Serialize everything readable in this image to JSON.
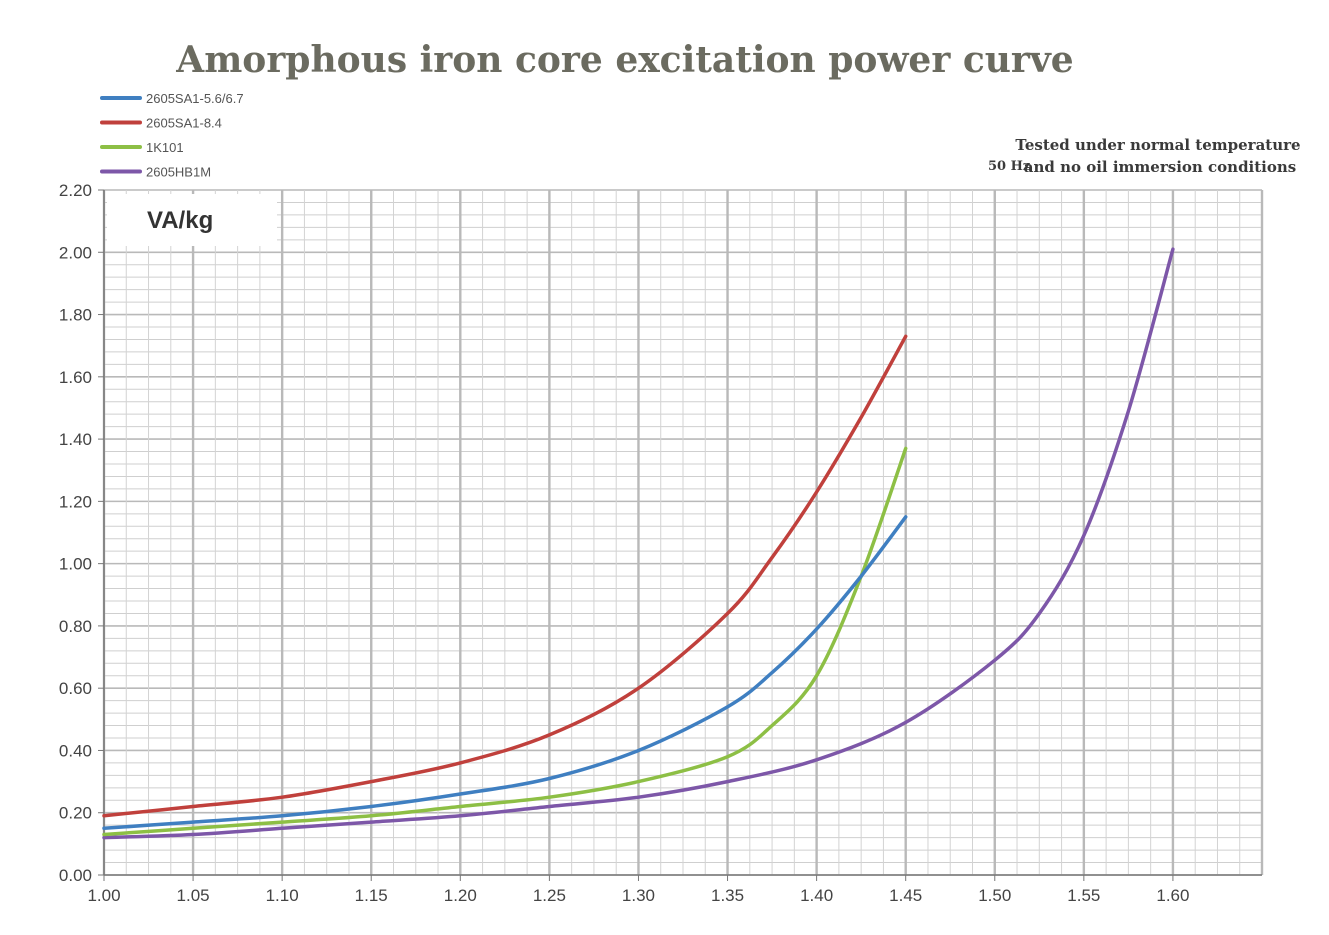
{
  "chart_data": {
    "type": "line",
    "title": "Amorphous iron core excitation power curve",
    "ylabel": "VA/kg",
    "xlabel": "",
    "frequency_label": "50 Hz",
    "note_lines": [
      "Tested under normal temperature",
      "and no oil immersion conditions"
    ],
    "xlim": [
      1.0,
      1.65
    ],
    "ylim": [
      0,
      2.2
    ],
    "x_ticks": [
      "1.00",
      "1.05",
      "1.10",
      "1.15",
      "1.20",
      "1.25",
      "1.30",
      "1.35",
      "1.40",
      "1.45",
      "1.50",
      "1.55",
      "1.60"
    ],
    "y_ticks": [
      "0.00",
      "0.20",
      "0.40",
      "0.60",
      "0.80",
      "1.00",
      "1.20",
      "1.40",
      "1.60",
      "1.80",
      "2.00",
      "2.20"
    ],
    "grid": true,
    "legend_position": "top-left",
    "series": [
      {
        "name": "2605SA1-5.6/6.7",
        "color": "#3f7fc1",
        "x": [
          1.0,
          1.05,
          1.1,
          1.15,
          1.2,
          1.25,
          1.3,
          1.35,
          1.375,
          1.4,
          1.425,
          1.45
        ],
        "y": [
          0.15,
          0.17,
          0.19,
          0.22,
          0.26,
          0.31,
          0.4,
          0.54,
          0.65,
          0.79,
          0.96,
          1.15
        ]
      },
      {
        "name": "2605SA1-8.4",
        "color": "#c0403c",
        "x": [
          1.0,
          1.05,
          1.1,
          1.15,
          1.2,
          1.25,
          1.3,
          1.35,
          1.375,
          1.4,
          1.425,
          1.45
        ],
        "y": [
          0.19,
          0.22,
          0.25,
          0.3,
          0.36,
          0.45,
          0.6,
          0.84,
          1.02,
          1.23,
          1.47,
          1.73
        ]
      },
      {
        "name": "1K101",
        "color": "#8dbf45",
        "x": [
          1.0,
          1.05,
          1.1,
          1.15,
          1.2,
          1.25,
          1.3,
          1.35,
          1.375,
          1.4,
          1.425,
          1.45
        ],
        "y": [
          0.13,
          0.15,
          0.17,
          0.19,
          0.22,
          0.25,
          0.3,
          0.38,
          0.48,
          0.64,
          0.96,
          1.37
        ]
      },
      {
        "name": "2605HB1M",
        "color": "#7d57a8",
        "x": [
          1.0,
          1.05,
          1.1,
          1.15,
          1.2,
          1.25,
          1.3,
          1.35,
          1.4,
          1.45,
          1.5,
          1.525,
          1.55,
          1.575,
          1.6
        ],
        "y": [
          0.12,
          0.13,
          0.15,
          0.17,
          0.19,
          0.22,
          0.25,
          0.3,
          0.37,
          0.49,
          0.69,
          0.84,
          1.09,
          1.49,
          2.01
        ]
      }
    ]
  }
}
